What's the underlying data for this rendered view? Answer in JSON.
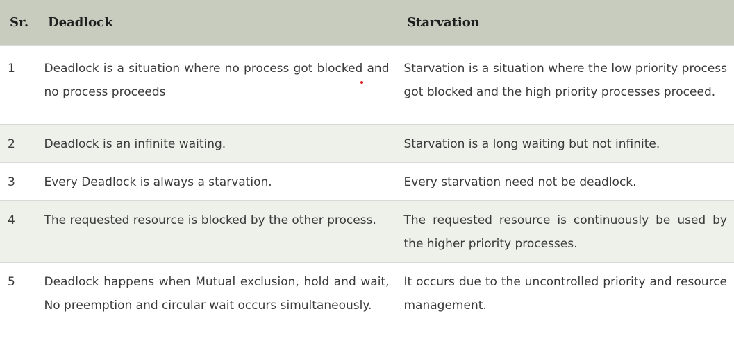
{
  "table": {
    "headers": [
      "Sr.",
      "Deadlock",
      "Starvation"
    ],
    "rows": [
      {
        "sr": "1",
        "deadlock": "Deadlock is a situation where no process got blocked and no process proceeds",
        "starvation": "Starvation is a situation where the low priority process got blocked and the high priority processes proceed."
      },
      {
        "sr": "2",
        "deadlock": "Deadlock is an infinite waiting.",
        "starvation": "Starvation is a long waiting but not infinite."
      },
      {
        "sr": "3",
        "deadlock": "Every Deadlock is always a starvation.",
        "starvation": "Every starvation need not be deadlock."
      },
      {
        "sr": "4",
        "deadlock": "The requested resource is blocked by the other process.",
        "starvation": "The requested resource is continuously be used by the higher priority processes."
      },
      {
        "sr": "5",
        "deadlock": "Deadlock happens when Mutual exclusion, hold and wait, No preemption and circular wait occurs simultaneously.",
        "starvation": "It occurs due to the uncontrolled priority and resource management."
      }
    ]
  },
  "colors": {
    "header_bg": "#c8ccbf",
    "alt_row_bg": "#eef0ea",
    "border": "#d9d9d9",
    "marker_dot": "#e02020"
  }
}
